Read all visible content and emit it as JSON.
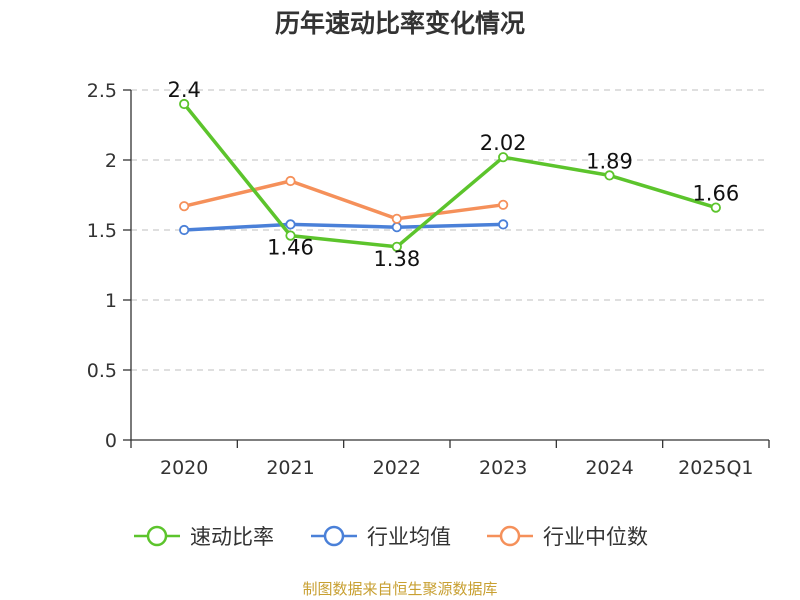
{
  "page": {
    "title": "历年速动比率变化情况",
    "source": "制图数据来自恒生聚源数据库"
  },
  "chart_data": {
    "type": "line",
    "title": "历年速动比率变化情况",
    "categories": [
      "2020",
      "2021",
      "2022",
      "2023",
      "2024",
      "2025Q1"
    ],
    "ylim": [
      0,
      2.5
    ],
    "yticks": [
      "0",
      "0.5",
      "1",
      "1.5",
      "2",
      "2.5"
    ],
    "grid": true,
    "legend_position": "bottom",
    "series": [
      {
        "name": "速动比率",
        "color": "#5cc42c",
        "values": [
          2.4,
          1.46,
          1.38,
          2.02,
          1.89,
          1.66
        ],
        "labels": [
          "2.4",
          "1.46",
          "1.38",
          "2.02",
          "1.89",
          "1.66"
        ]
      },
      {
        "name": "行业均值",
        "color": "#4a80d8",
        "values": [
          1.5,
          1.54,
          1.52,
          1.54,
          null,
          null
        ]
      },
      {
        "name": "行业中位数",
        "color": "#f5905a",
        "values": [
          1.67,
          1.85,
          1.58,
          1.68,
          null,
          null
        ]
      }
    ]
  }
}
